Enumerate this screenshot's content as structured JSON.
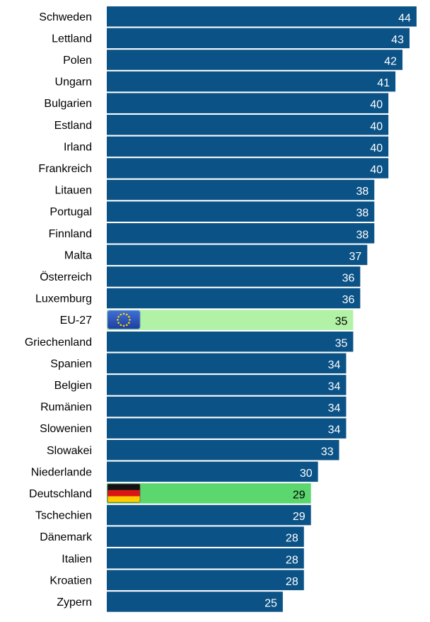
{
  "chart_data": {
    "type": "bar",
    "orientation": "horizontal",
    "title": "",
    "xlabel": "",
    "ylabel": "",
    "categories": [
      "Schweden",
      "Lettland",
      "Polen",
      "Ungarn",
      "Bulgarien",
      "Estland",
      "Irland",
      "Frankreich",
      "Litauen",
      "Portugal",
      "Finnland",
      "Malta",
      "Österreich",
      "Luxemburg",
      "EU-27",
      "Griechenland",
      "Spanien",
      "Belgien",
      "Rumänien",
      "Slowenien",
      "Slowakei",
      "Niederlande",
      "Deutschland",
      "Tschechien",
      "Dänemark",
      "Italien",
      "Kroatien",
      "Zypern"
    ],
    "values": [
      44,
      43,
      42,
      41,
      40,
      40,
      40,
      40,
      38,
      38,
      38,
      37,
      36,
      36,
      35,
      35,
      34,
      34,
      34,
      34,
      33,
      30,
      29,
      29,
      28,
      28,
      28,
      25
    ],
    "xlim": [
      0,
      44
    ],
    "grid": false,
    "legend": "none",
    "colors": {
      "bar": "#0b5286",
      "eu_highlight": "#b2f2a6",
      "de_highlight": "#5cd66e",
      "value_on_bar": "#ffffff",
      "value_on_highlight": "#000000"
    },
    "highlights": [
      {
        "category": "EU-27",
        "color_key": "eu_highlight",
        "icon": "eu-flag-icon"
      },
      {
        "category": "Deutschland",
        "color_key": "de_highlight",
        "icon": "germany-flag-icon"
      }
    ]
  }
}
